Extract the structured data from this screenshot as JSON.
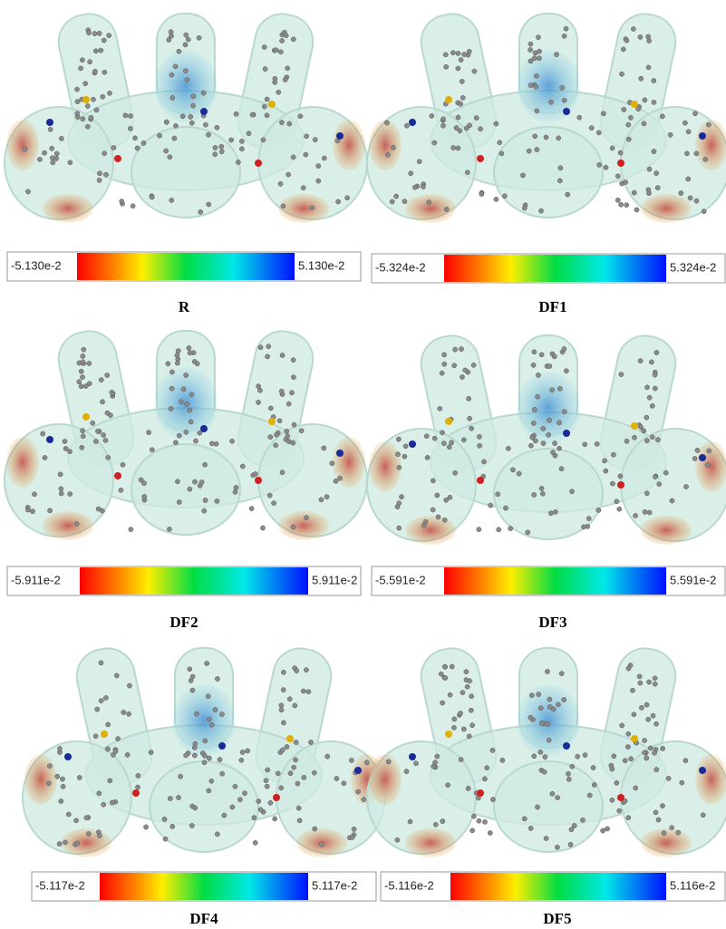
{
  "panels": [
    {
      "label": "R",
      "min_label": "-5.130e-2",
      "max_label": "5.130e-2"
    },
    {
      "label": "DF1",
      "min_label": "-5.324e-2",
      "max_label": "5.324e-2"
    },
    {
      "label": "DF2",
      "min_label": "-5.911e-2",
      "max_label": "5.911e-2"
    },
    {
      "label": "DF3",
      "min_label": "-5.591e-2",
      "max_label": "5.591e-2"
    },
    {
      "label": "DF4",
      "min_label": "-5.117e-2",
      "max_label": "5.117e-2"
    },
    {
      "label": "DF5",
      "min_label": "-5.116e-2",
      "max_label": "5.116e-2"
    }
  ]
}
